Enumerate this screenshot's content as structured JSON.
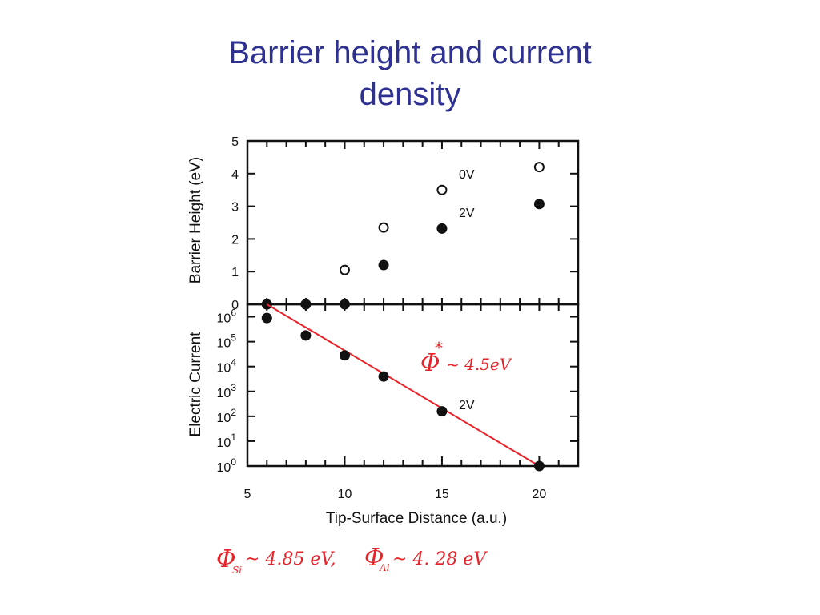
{
  "slide": {
    "title_line1": "Barrier height and current",
    "title_line2": "density"
  },
  "chart_data": [
    {
      "type": "scatter",
      "panel": "top",
      "ylabel": "Barrier Height (eV)",
      "xlim": [
        5,
        22
      ],
      "ylim": [
        0,
        5
      ],
      "yticks": [
        0,
        1,
        2,
        3,
        4,
        5
      ],
      "series": [
        {
          "name": "0V",
          "marker": "open-circle",
          "x": [
            6,
            8,
            10,
            12,
            15,
            20
          ],
          "y": [
            0,
            0,
            1.05,
            2.35,
            3.5,
            4.2
          ]
        },
        {
          "name": "2V",
          "marker": "filled-circle",
          "x": [
            6,
            8,
            10,
            12,
            15,
            20
          ],
          "y": [
            0,
            0,
            0,
            1.2,
            2.32,
            3.07
          ]
        }
      ]
    },
    {
      "type": "scatter",
      "panel": "bottom",
      "ylabel": "Electric Current",
      "xlabel": "Tip-Surface Distance  (a.u.)",
      "xlim": [
        5,
        22
      ],
      "xticks": [
        5,
        10,
        15,
        20
      ],
      "ylim_log10": [
        0,
        6.5
      ],
      "ytick_exponents": [
        0,
        1,
        2,
        3,
        4,
        5,
        6
      ],
      "ytick_base": "10",
      "series": [
        {
          "name": "2V",
          "marker": "filled-circle",
          "x": [
            6,
            8,
            10,
            12,
            15,
            20
          ],
          "log10_y": [
            5.95,
            5.25,
            4.45,
            3.6,
            2.2,
            0
          ]
        }
      ],
      "fit_line": {
        "x": [
          6,
          20
        ],
        "log10_y": [
          6.5,
          0
        ],
        "color": "#e8232a"
      },
      "annotation_phi": "Φ",
      "annotation_star": "*",
      "annotation_value": "~ 4.5eV"
    }
  ],
  "handwritten_note": {
    "phi_si": "Φ",
    "si_sub": "Si",
    "si_value": "~ 4.85 eV,",
    "phi_al": "Φ",
    "al_sub": "Al",
    "al_value": "~ 4. 28 eV"
  },
  "colors": {
    "title": "#2e3192",
    "annotation": "#e8232a",
    "axis": "#111111"
  }
}
